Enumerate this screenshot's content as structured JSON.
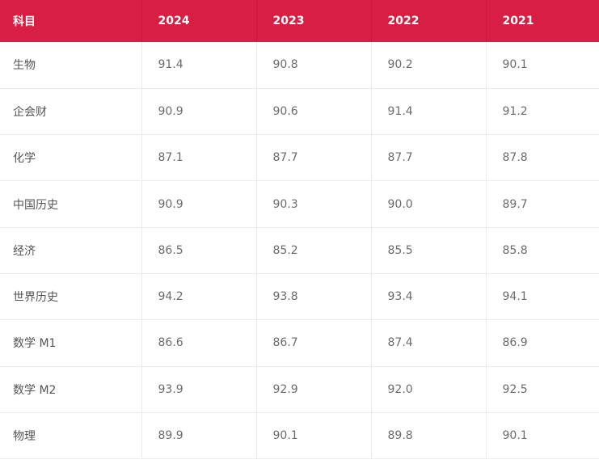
{
  "table": {
    "headers": [
      "科目",
      "2024",
      "2023",
      "2022",
      "2021"
    ],
    "rows": [
      {
        "subject": "生物",
        "values": [
          "91.4",
          "90.8",
          "90.2",
          "90.1"
        ]
      },
      {
        "subject": "企会财",
        "values": [
          "90.9",
          "90.6",
          "91.4",
          "91.2"
        ]
      },
      {
        "subject": "化学",
        "values": [
          "87.1",
          "87.7",
          "87.7",
          "87.8"
        ]
      },
      {
        "subject": "中国历史",
        "values": [
          "90.9",
          "90.3",
          "90.0",
          "89.7"
        ]
      },
      {
        "subject": "经济",
        "values": [
          "86.5",
          "85.2",
          "85.5",
          "85.8"
        ]
      },
      {
        "subject": "世界历史",
        "values": [
          "94.2",
          "93.8",
          "93.4",
          "94.1"
        ]
      },
      {
        "subject": "数学 M1",
        "values": [
          "86.6",
          "86.7",
          "87.4",
          "86.9"
        ]
      },
      {
        "subject": "数学 M2",
        "values": [
          "93.9",
          "92.9",
          "92.0",
          "92.5"
        ]
      },
      {
        "subject": "物理",
        "values": [
          "89.9",
          "90.1",
          "89.8",
          "90.1"
        ]
      }
    ]
  },
  "colors": {
    "header_background": "#d81e42",
    "header_text": "#ffffff",
    "cell_text": "#6b6b6b",
    "grid_line": "#ececec"
  }
}
